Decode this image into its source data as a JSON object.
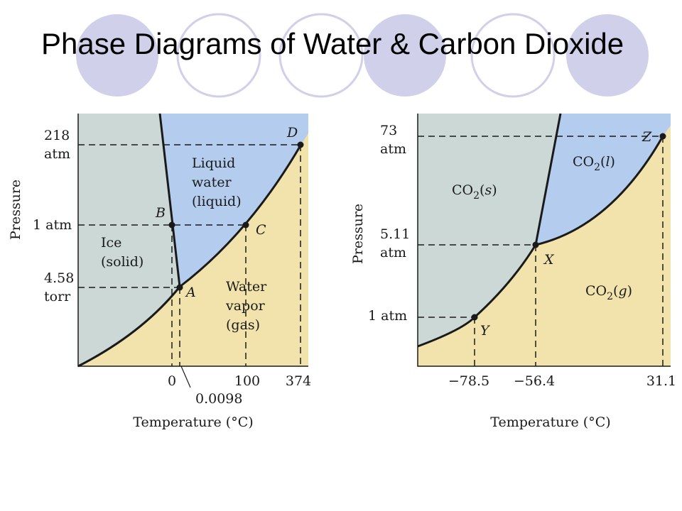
{
  "title": "Phase Diagrams of Water & Carbon Dioxide",
  "colors": {
    "solid_region": "#cbd8d6",
    "liquid_region": "#b4cdee",
    "gas_region": "#f1e3ab",
    "decor_circle": "#d0d0ea"
  },
  "water": {
    "y_axis_label": "Pressure",
    "x_axis_label": "Temperature (°C)",
    "pressure_labels": [
      {
        "line1": "218",
        "line2": "atm"
      },
      {
        "line1": "1 atm",
        "line2": ""
      },
      {
        "line1": "4.58",
        "line2": "torr"
      }
    ],
    "temp_labels": [
      "0",
      "0.0098",
      "100",
      "374"
    ],
    "regions": {
      "solid": [
        "Ice",
        "(solid)"
      ],
      "liquid": [
        "Liquid",
        "water",
        "(liquid)"
      ],
      "gas": [
        "Water",
        "vapor",
        "(gas)"
      ]
    },
    "points": [
      "A",
      "B",
      "C",
      "D"
    ]
  },
  "co2": {
    "y_axis_label": "Pressure",
    "x_axis_label": "Temperature (°C)",
    "pressure_labels": [
      {
        "line1": "73",
        "line2": "atm"
      },
      {
        "line1": "5.11",
        "line2": "atm"
      },
      {
        "line1": "1 atm",
        "line2": ""
      }
    ],
    "temp_labels": [
      "−78.5",
      "−56.4",
      "31.1"
    ],
    "regions": {
      "solid": {
        "base": "CO",
        "sub": "2",
        "phase": "s"
      },
      "liquid": {
        "base": "CO",
        "sub": "2",
        "phase": "l"
      },
      "gas": {
        "base": "CO",
        "sub": "2",
        "phase": "g"
      }
    },
    "points": [
      "X",
      "Y",
      "Z"
    ]
  }
}
